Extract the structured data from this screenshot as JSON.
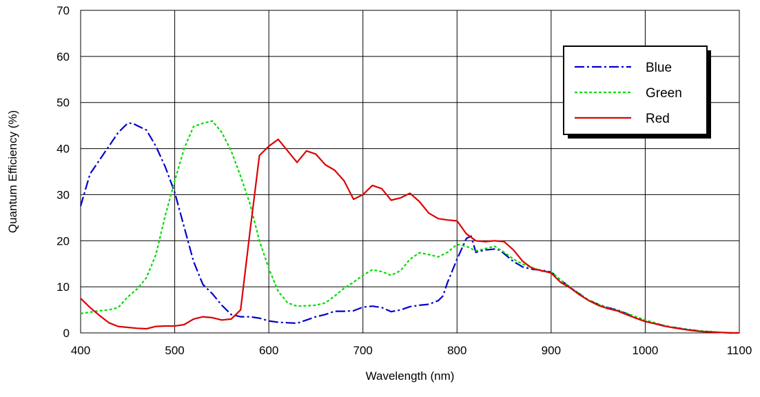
{
  "chart_data": {
    "type": "line",
    "title": "",
    "xlabel": "Wavelength (nm)",
    "ylabel": "Quantum Efficiency (%)",
    "xlim": [
      400,
      1100
    ],
    "ylim": [
      0,
      70
    ],
    "xticks": [
      400,
      500,
      600,
      700,
      800,
      900,
      1000,
      1100
    ],
    "yticks": [
      0,
      10,
      20,
      30,
      40,
      50,
      60,
      70
    ],
    "grid": true,
    "legend_position": "top-right",
    "series": [
      {
        "name": "Blue",
        "color": "#0000cc",
        "style": "dash-dot",
        "x": [
          400,
          405,
          410,
          420,
          430,
          440,
          450,
          455,
          460,
          465,
          470,
          480,
          490,
          500,
          510,
          520,
          530,
          540,
          550,
          560,
          570,
          580,
          590,
          600,
          610,
          620,
          630,
          640,
          650,
          660,
          670,
          680,
          690,
          700,
          710,
          720,
          730,
          740,
          750,
          760,
          770,
          780,
          785,
          790,
          800,
          810,
          815,
          820,
          830,
          840,
          845,
          850,
          860,
          870,
          880,
          890,
          900,
          910,
          920,
          930,
          940,
          950,
          960,
          970,
          980,
          990,
          1000,
          1010,
          1020,
          1030,
          1040,
          1050,
          1060,
          1070,
          1080,
          1090,
          1100
        ],
        "y": [
          27.5,
          31,
          34.5,
          37.5,
          40.5,
          43.5,
          45.5,
          45.5,
          45,
          44.5,
          44,
          40.5,
          36,
          30.5,
          23,
          15.5,
          10.5,
          8.5,
          6,
          4,
          3.5,
          3.5,
          3.2,
          2.6,
          2.3,
          2.2,
          2.1,
          2.8,
          3.5,
          4,
          4.7,
          4.7,
          4.8,
          5.6,
          5.8,
          5.5,
          4.6,
          5,
          5.7,
          6,
          6.2,
          7,
          8,
          11,
          16,
          20.5,
          21,
          17.5,
          18,
          18.2,
          18,
          17.2,
          15.5,
          14.3,
          13.8,
          13.6,
          13.2,
          11.5,
          9.9,
          8.5,
          7.1,
          6.2,
          5.5,
          5,
          4.2,
          3.2,
          2.5,
          2,
          1.6,
          1.2,
          0.9,
          0.6,
          0.4,
          0.2,
          0.1,
          0,
          0
        ]
      },
      {
        "name": "Green",
        "color": "#00dd00",
        "style": "dotted",
        "x": [
          400,
          410,
          420,
          430,
          440,
          450,
          460,
          470,
          480,
          490,
          500,
          510,
          520,
          530,
          540,
          550,
          560,
          570,
          580,
          590,
          600,
          610,
          620,
          630,
          640,
          650,
          660,
          670,
          680,
          690,
          700,
          710,
          720,
          730,
          740,
          750,
          760,
          770,
          780,
          790,
          800,
          810,
          820,
          830,
          840,
          850,
          860,
          870,
          880,
          890,
          900,
          910,
          920,
          930,
          940,
          950,
          960,
          970,
          980,
          990,
          1000,
          1010,
          1020,
          1030,
          1040,
          1050,
          1060,
          1070,
          1080,
          1090,
          1100
        ],
        "y": [
          4.2,
          4.5,
          4.8,
          5,
          5.5,
          7.8,
          9.5,
          12,
          17,
          25.5,
          33,
          40,
          44.8,
          45.5,
          46,
          43.5,
          39.5,
          34,
          28,
          20,
          14,
          9,
          6.5,
          5.8,
          5.9,
          6,
          6.5,
          8,
          9.7,
          11,
          12.5,
          13.7,
          13.3,
          12.5,
          13.5,
          16,
          17.4,
          17,
          16.5,
          17.5,
          19.2,
          18.8,
          17.8,
          18.3,
          18.8,
          17.5,
          16,
          14.9,
          14.2,
          13.4,
          13.2,
          11.5,
          9.9,
          8.5,
          7.1,
          6.2,
          5.4,
          4.9,
          4.3,
          3.5,
          2.8,
          2.2,
          1.6,
          1.2,
          0.9,
          0.6,
          0.4,
          0.3,
          0.1,
          0,
          0
        ]
      },
      {
        "name": "Red",
        "color": "#dd0000",
        "style": "solid",
        "x": [
          400,
          410,
          420,
          430,
          440,
          450,
          460,
          470,
          480,
          490,
          500,
          510,
          520,
          530,
          540,
          550,
          560,
          570,
          580,
          590,
          600,
          610,
          620,
          630,
          640,
          650,
          660,
          670,
          680,
          690,
          700,
          710,
          720,
          730,
          740,
          750,
          760,
          770,
          780,
          790,
          800,
          810,
          820,
          830,
          840,
          850,
          860,
          870,
          880,
          890,
          900,
          910,
          920,
          930,
          940,
          950,
          960,
          970,
          980,
          990,
          1000,
          1010,
          1020,
          1030,
          1040,
          1050,
          1060,
          1070,
          1080,
          1090,
          1100
        ],
        "y": [
          7.5,
          5.5,
          3.8,
          2.2,
          1.4,
          1.2,
          1,
          0.9,
          1.4,
          1.5,
          1.5,
          1.8,
          3,
          3.5,
          3.3,
          2.8,
          3,
          5,
          22,
          38.5,
          40.5,
          42,
          39.5,
          37,
          39.5,
          38.8,
          36.5,
          35.3,
          33,
          29,
          30,
          32,
          31.3,
          28.8,
          29.3,
          30.3,
          28.5,
          26,
          24.8,
          24.5,
          24.3,
          21.5,
          20,
          19.8,
          20,
          19.8,
          18,
          15.5,
          14,
          13.5,
          13,
          11,
          9.8,
          8.3,
          7,
          6,
          5.3,
          4.8,
          4,
          3.2,
          2.5,
          2,
          1.5,
          1.1,
          0.8,
          0.5,
          0.3,
          0.2,
          0.1,
          0,
          0
        ]
      }
    ]
  }
}
